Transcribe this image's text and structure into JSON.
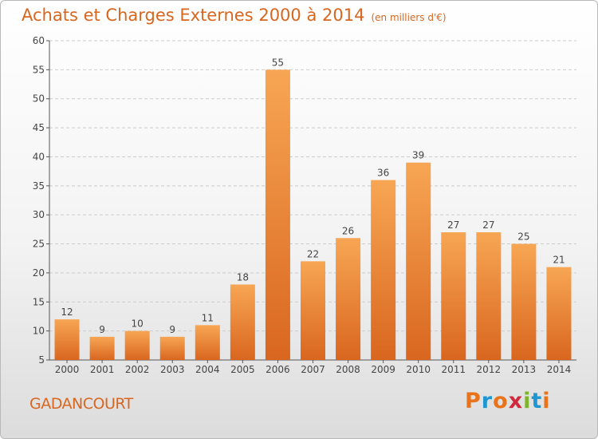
{
  "header": {
    "title": "Achats et Charges Externes 2000 à 2014",
    "subtitle": "(en milliers d'€)"
  },
  "footer": {
    "commune": "GADANCOURT",
    "logo_text": "Proxiti"
  },
  "colors": {
    "accent": "#d9661f",
    "bar_top": "#f7a654",
    "bar_bottom": "#d9661f",
    "grid": "#cccccc",
    "logo_letters": [
      "#e8731a",
      "#1e96d2",
      "#e8731a",
      "#d2283c",
      "#7db52a",
      "#1e96d2",
      "#e8731a"
    ]
  },
  "chart_data": {
    "type": "bar",
    "categories": [
      "2000",
      "2001",
      "2002",
      "2003",
      "2004",
      "2005",
      "2006",
      "2007",
      "2008",
      "2009",
      "2010",
      "2011",
      "2012",
      "2013",
      "2014"
    ],
    "values": [
      12,
      9,
      10,
      9,
      11,
      18,
      55,
      22,
      26,
      36,
      39,
      27,
      27,
      25,
      21
    ],
    "title": "Achats et Charges Externes 2000 à 2014",
    "subtitle": "(en milliers d'€)",
    "ylim": [
      5,
      60
    ],
    "yticks": [
      5,
      10,
      15,
      20,
      25,
      30,
      35,
      40,
      45,
      50,
      55,
      60
    ],
    "grid": "horizontal dashed",
    "legend": "none"
  }
}
